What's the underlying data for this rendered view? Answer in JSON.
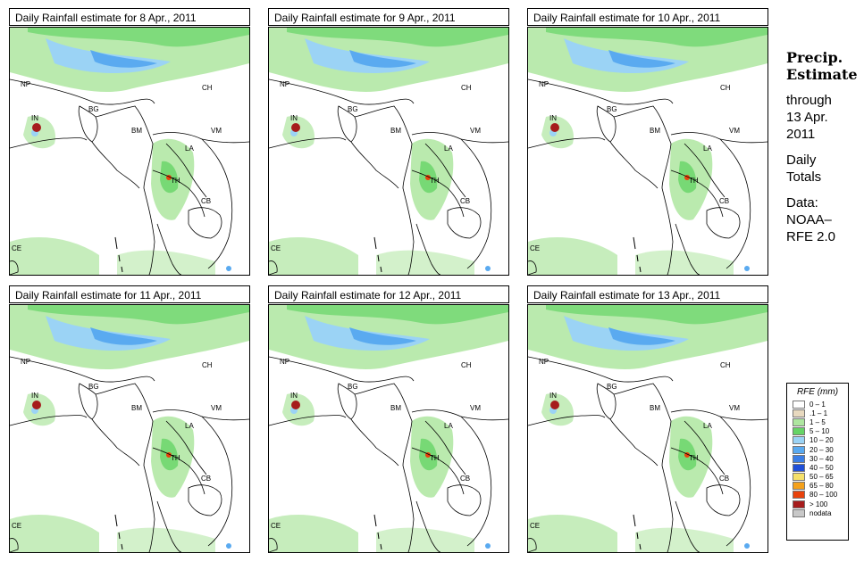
{
  "panels": [
    {
      "title": "Daily Rainfall estimate for  8 Apr., 2011"
    },
    {
      "title": "Daily Rainfall estimate for  9 Apr., 2011"
    },
    {
      "title": "Daily Rainfall estimate for  10 Apr., 2011"
    },
    {
      "title": "Daily Rainfall estimate for  11 Apr., 2011"
    },
    {
      "title": "Daily Rainfall estimate for  12 Apr., 2011"
    },
    {
      "title": "Daily Rainfall estimate for  13 Apr., 2011"
    }
  ],
  "country_labels": {
    "np": "NP",
    "ch": "CH",
    "in": "IN",
    "bg": "BG",
    "bm": "BM",
    "vm": "VM",
    "la": "LA",
    "th": "TH",
    "cb": "CB",
    "ce": "CE"
  },
  "sidebar": {
    "title_line1": "Precip.",
    "title_line2": "Estimate",
    "through": "through",
    "date_line1": "13 Apr.",
    "date_line2": "2011",
    "daily_line1": "Daily",
    "daily_line2": "Totals",
    "data_line1": "Data:",
    "data_line2": "NOAA–",
    "data_line3": "RFE 2.0"
  },
  "legend": {
    "title": "RFE (mm)",
    "items": [
      {
        "label": "0 – 1",
        "color": "#ffffff"
      },
      {
        "label": ".1 – 1",
        "color": "#e8d9bf"
      },
      {
        "label": "1 – 5",
        "color": "#aee6a0"
      },
      {
        "label": "5 – 10",
        "color": "#66d466"
      },
      {
        "label": "10 – 20",
        "color": "#9bd3f5"
      },
      {
        "label": "20 – 30",
        "color": "#5aaaf0"
      },
      {
        "label": "30 – 40",
        "color": "#3b7ee6"
      },
      {
        "label": "40 – 50",
        "color": "#1f4fd8"
      },
      {
        "label": "50 – 65",
        "color": "#f5e06a"
      },
      {
        "label": "65 – 80",
        "color": "#f4a11c"
      },
      {
        "label": "80 – 100",
        "color": "#e8420c"
      },
      {
        "label": "> 100",
        "color": "#a61c1c"
      },
      {
        "label": "nodata",
        "color": "#c8c8c8"
      }
    ]
  }
}
